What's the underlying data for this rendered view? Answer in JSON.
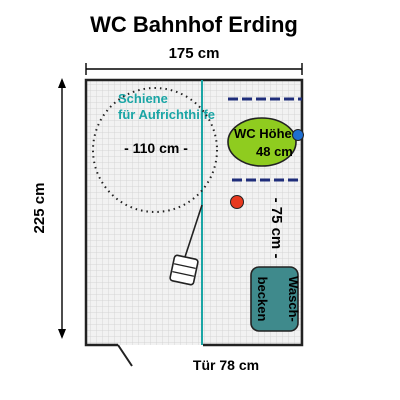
{
  "title": "WC Bahnhof Erding",
  "width_label": "175 cm",
  "height_label": "225 cm",
  "door_label": "Tür 78 cm",
  "rail_label_line1": "Schiene",
  "rail_label_line2": "für Aufrichthilfe",
  "turning_circle_label": "- 110 cm -",
  "wc_label_line1": "WC Höhe",
  "wc_label_line2": "48 cm",
  "clearance_label": "- 75 cm -",
  "sink_label_line1": "Wasch-",
  "sink_label_line2": "becken",
  "colors": {
    "wall": "#222222",
    "floor_tile": "#d9d9d9",
    "floor_bg": "#f2f2f2",
    "rail": "#1aa5a5",
    "rail_text": "#1aa5a5",
    "wc_fill": "#8fcc1f",
    "wc_button": "#1f6fd1",
    "alarm": "#e8391f",
    "grab_bar": "#1f2d7a",
    "sink_fill": "#3f8a8c"
  },
  "icons": {
    "wc": "toilet-bowl-icon",
    "alarm": "emergency-button-icon",
    "flush": "flush-button-icon",
    "bin": "waste-bin-icon"
  }
}
